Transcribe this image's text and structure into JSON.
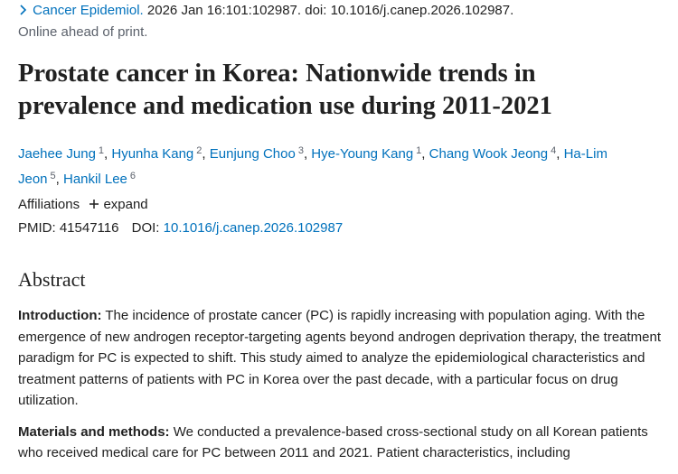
{
  "citation": {
    "journal": "Cancer Epidemiol.",
    "details": " 2026 Jan 16:101:102987. doi: 10.1016/j.canep.2026.102987."
  },
  "status": "Online ahead of print.",
  "title": "Prostate cancer in Korea: Nationwide trends in prevalence and medication use during 2011-2021",
  "authors": [
    {
      "name": "Jaehee Jung",
      "affiliation": "1",
      "delimiter": ","
    },
    {
      "name": "Hyunha Kang",
      "affiliation": "2",
      "delimiter": ","
    },
    {
      "name": "Eunjung Choo",
      "affiliation": "3",
      "delimiter": ","
    },
    {
      "name": "Hye-Young Kang",
      "affiliation": "1",
      "delimiter": ","
    },
    {
      "name": "Chang Wook Jeong",
      "affiliation": "4",
      "delimiter": ","
    },
    {
      "name": "Ha-Lim Jeon",
      "affiliation": "5",
      "delimiter": ","
    },
    {
      "name": "Hankil Lee",
      "affiliation": "6"
    }
  ],
  "affiliations": {
    "label": "Affiliations",
    "toggle": "expand"
  },
  "identifiers": {
    "pmid_label": "PMID:",
    "pmid": "41547116",
    "doi_label": "DOI:",
    "doi": "10.1016/j.canep.2026.102987"
  },
  "abstract": {
    "heading": "Abstract",
    "sections": [
      {
        "label": "Introduction:",
        "text": " The incidence of prostate cancer (PC) is rapidly increasing with population aging. With the emergence of new androgen receptor-targeting agents beyond androgen deprivation therapy, the treatment paradigm for PC is expected to shift. This study aimed to analyze the epidemiological characteristics and treatment patterns of patients with PC in Korea over the past decade, with a particular focus on drug utilization."
      },
      {
        "label": "Materials and methods:",
        "text": " We conducted a prevalence-based cross-sectional study on all Korean patients who received medical care for PC between 2011 and 2021. Patient characteristics, including"
      }
    ]
  }
}
